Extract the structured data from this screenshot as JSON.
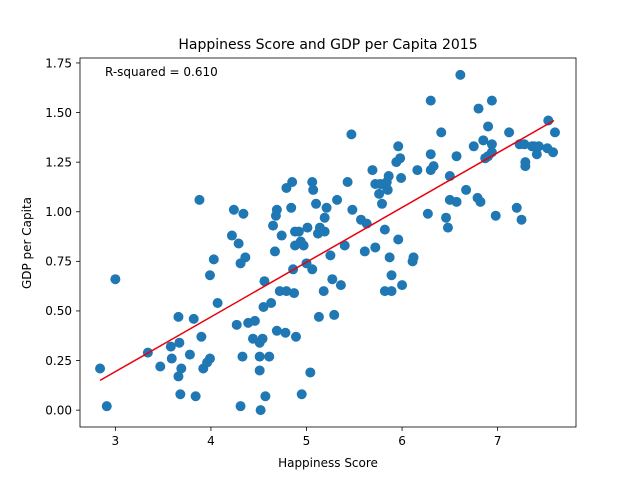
{
  "chart_data": {
    "type": "scatter",
    "title": "Happiness Score and GDP per Capita 2015",
    "xlabel": "Happiness Score",
    "ylabel": "GDP per Capita",
    "annotation": "R-squared = 0.610",
    "xlim": [
      2.63,
      7.82
    ],
    "ylim": [
      -0.085,
      1.775
    ],
    "xticks": [
      3,
      4,
      5,
      6,
      7
    ],
    "yticks": [
      0.0,
      0.25,
      0.5,
      0.75,
      1.0,
      1.25,
      1.5,
      1.75
    ],
    "ytick_labels": [
      "0.00",
      "0.25",
      "0.50",
      "0.75",
      "1.00",
      "1.25",
      "1.50",
      "1.75"
    ],
    "grid": false,
    "point_color": "#1f77b4",
    "fit_line": {
      "color": "#e8000b",
      "x": [
        2.84,
        7.59
      ],
      "y": [
        0.15,
        1.46
      ]
    },
    "points": [
      [
        2.84,
        0.21
      ],
      [
        2.91,
        0.02
      ],
      [
        3.0,
        0.66
      ],
      [
        3.34,
        0.29
      ],
      [
        3.47,
        0.22
      ],
      [
        3.58,
        0.32
      ],
      [
        3.59,
        0.26
      ],
      [
        3.66,
        0.47
      ],
      [
        3.66,
        0.17
      ],
      [
        3.67,
        0.34
      ],
      [
        3.68,
        0.08
      ],
      [
        3.69,
        0.21
      ],
      [
        3.78,
        0.28
      ],
      [
        3.82,
        0.46
      ],
      [
        3.84,
        0.07
      ],
      [
        3.88,
        1.06
      ],
      [
        3.9,
        0.37
      ],
      [
        3.92,
        0.21
      ],
      [
        3.96,
        0.24
      ],
      [
        3.99,
        0.26
      ],
      [
        3.99,
        0.68
      ],
      [
        4.03,
        0.76
      ],
      [
        4.07,
        0.54
      ],
      [
        4.22,
        0.88
      ],
      [
        4.24,
        1.01
      ],
      [
        4.27,
        0.43
      ],
      [
        4.29,
        0.84
      ],
      [
        4.31,
        0.02
      ],
      [
        4.31,
        0.74
      ],
      [
        4.33,
        0.27
      ],
      [
        4.34,
        0.99
      ],
      [
        4.36,
        0.77
      ],
      [
        4.39,
        0.44
      ],
      [
        4.44,
        0.36
      ],
      [
        4.46,
        0.45
      ],
      [
        4.51,
        0.34
      ],
      [
        4.51,
        0.27
      ],
      [
        4.51,
        0.2
      ],
      [
        4.52,
        0.0
      ],
      [
        4.54,
        0.36
      ],
      [
        4.55,
        0.52
      ],
      [
        4.56,
        0.65
      ],
      [
        4.57,
        0.07
      ],
      [
        4.61,
        0.27
      ],
      [
        4.63,
        0.54
      ],
      [
        4.65,
        0.93
      ],
      [
        4.67,
        0.8
      ],
      [
        4.68,
        0.98
      ],
      [
        4.69,
        1.01
      ],
      [
        4.69,
        0.4
      ],
      [
        4.72,
        0.6
      ],
      [
        4.74,
        0.88
      ],
      [
        4.78,
        0.39
      ],
      [
        4.79,
        1.12
      ],
      [
        4.79,
        0.6
      ],
      [
        4.84,
        1.02
      ],
      [
        4.85,
        1.15
      ],
      [
        4.86,
        0.71
      ],
      [
        4.87,
        0.59
      ],
      [
        4.88,
        0.83
      ],
      [
        4.88,
        0.9
      ],
      [
        4.89,
        0.37
      ],
      [
        4.92,
        0.9
      ],
      [
        4.94,
        0.85
      ],
      [
        4.95,
        0.08
      ],
      [
        4.97,
        0.83
      ],
      [
        5.0,
        0.74
      ],
      [
        5.01,
        0.92
      ],
      [
        5.04,
        0.19
      ],
      [
        5.06,
        0.71
      ],
      [
        5.06,
        1.15
      ],
      [
        5.07,
        1.11
      ],
      [
        5.1,
        1.04
      ],
      [
        5.12,
        0.89
      ],
      [
        5.13,
        0.47
      ],
      [
        5.14,
        0.92
      ],
      [
        5.18,
        0.6
      ],
      [
        5.19,
        0.9
      ],
      [
        5.19,
        0.97
      ],
      [
        5.21,
        1.02
      ],
      [
        5.25,
        0.78
      ],
      [
        5.27,
        0.66
      ],
      [
        5.29,
        0.48
      ],
      [
        5.32,
        1.06
      ],
      [
        5.36,
        0.63
      ],
      [
        5.4,
        0.83
      ],
      [
        5.43,
        1.15
      ],
      [
        5.47,
        1.39
      ],
      [
        5.48,
        1.01
      ],
      [
        5.57,
        0.96
      ],
      [
        5.61,
        0.8
      ],
      [
        5.63,
        0.94
      ],
      [
        5.69,
        1.21
      ],
      [
        5.72,
        0.82
      ],
      [
        5.72,
        1.14
      ],
      [
        5.76,
        1.09
      ],
      [
        5.77,
        1.14
      ],
      [
        5.79,
        1.04
      ],
      [
        5.82,
        0.6
      ],
      [
        5.82,
        0.91
      ],
      [
        5.83,
        1.13
      ],
      [
        5.84,
        1.15
      ],
      [
        5.85,
        1.11
      ],
      [
        5.86,
        1.18
      ],
      [
        5.87,
        0.77
      ],
      [
        5.89,
        0.6
      ],
      [
        5.89,
        0.68
      ],
      [
        5.94,
        1.25
      ],
      [
        5.96,
        1.33
      ],
      [
        5.96,
        0.86
      ],
      [
        5.98,
        1.27
      ],
      [
        5.99,
        1.17
      ],
      [
        6.0,
        0.63
      ],
      [
        6.11,
        0.75
      ],
      [
        6.12,
        0.77
      ],
      [
        6.16,
        1.21
      ],
      [
        6.27,
        0.99
      ],
      [
        6.3,
        1.56
      ],
      [
        6.3,
        1.29
      ],
      [
        6.3,
        1.21
      ],
      [
        6.33,
        1.23
      ],
      [
        6.41,
        1.4
      ],
      [
        6.46,
        0.97
      ],
      [
        6.48,
        0.92
      ],
      [
        6.5,
        1.06
      ],
      [
        6.5,
        1.18
      ],
      [
        6.57,
        1.28
      ],
      [
        6.57,
        1.05
      ],
      [
        6.61,
        1.69
      ],
      [
        6.67,
        1.11
      ],
      [
        6.75,
        1.33
      ],
      [
        6.79,
        1.07
      ],
      [
        6.8,
        1.52
      ],
      [
        6.82,
        1.05
      ],
      [
        6.85,
        1.36
      ],
      [
        6.87,
        1.27
      ],
      [
        6.9,
        1.43
      ],
      [
        6.9,
        1.28
      ],
      [
        6.94,
        1.34
      ],
      [
        6.94,
        1.3
      ],
      [
        6.94,
        1.56
      ],
      [
        6.98,
        0.98
      ],
      [
        7.12,
        1.4
      ],
      [
        7.2,
        1.02
      ],
      [
        7.23,
        1.34
      ],
      [
        7.25,
        0.96
      ],
      [
        7.28,
        1.34
      ],
      [
        7.29,
        1.23
      ],
      [
        7.29,
        1.25
      ],
      [
        7.36,
        1.33
      ],
      [
        7.38,
        1.33
      ],
      [
        7.41,
        1.29
      ],
      [
        7.43,
        1.33
      ],
      [
        7.52,
        1.32
      ],
      [
        7.53,
        1.46
      ],
      [
        7.58,
        1.3
      ],
      [
        7.6,
        1.4
      ]
    ]
  }
}
